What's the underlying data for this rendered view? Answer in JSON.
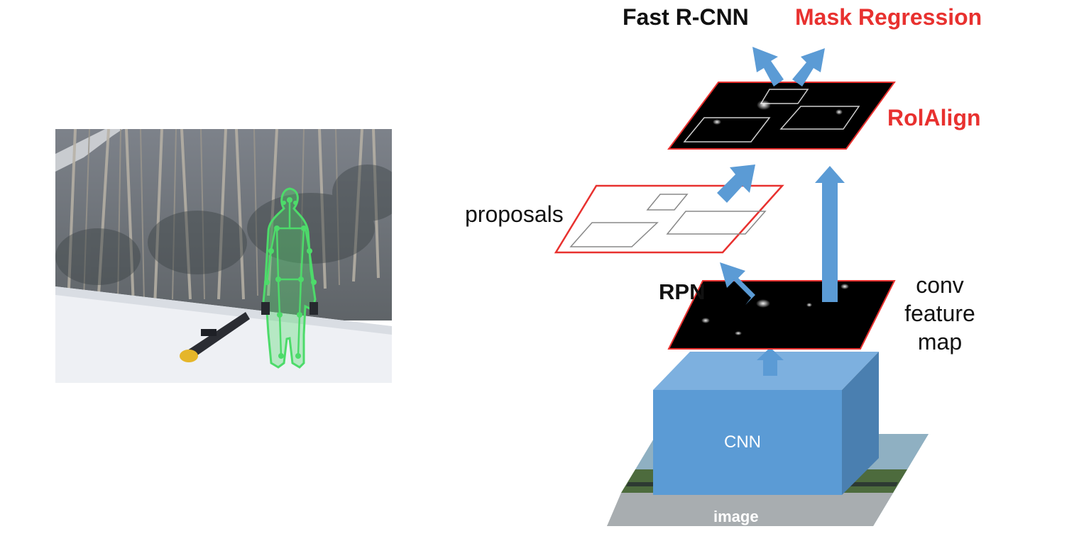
{
  "diagram": {
    "outputs": {
      "fast_rcnn": "Fast R-CNN",
      "mask_regression": "Mask Regression"
    },
    "stages": {
      "roialign": "RolAlign",
      "proposals": "proposals",
      "rpn": "RPN",
      "conv_feature_map": [
        "conv",
        "feature",
        "map"
      ],
      "cnn": "CNN",
      "image": "image"
    }
  },
  "colors": {
    "accent_red": "#e8312f",
    "arrow_blue": "#5b9bd5",
    "cnn_front": "#5b9bd5",
    "cnn_top": "#7db0df",
    "cnn_side": "#4a7fb0",
    "feature_map_fill": "#000000",
    "keypoint_green": "#4ddb6a"
  }
}
